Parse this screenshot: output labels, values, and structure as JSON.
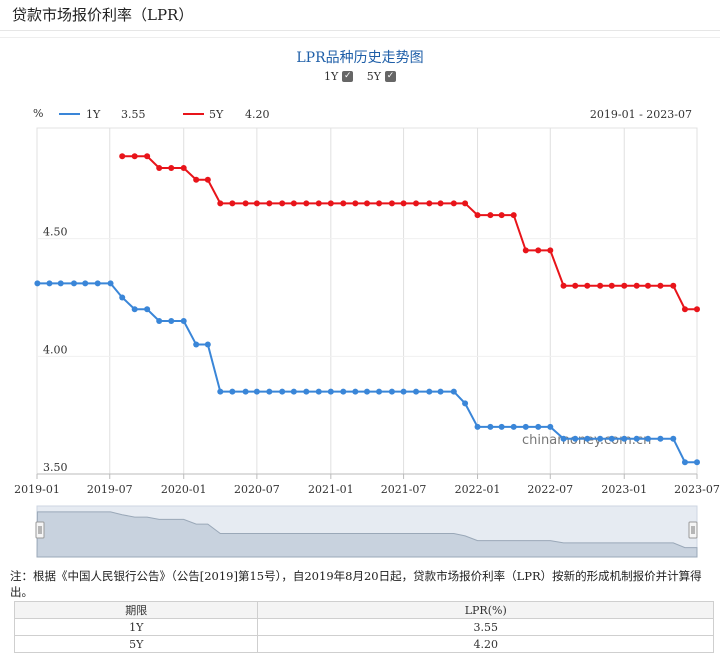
{
  "page": {
    "title": "贷款市场报价利率（LPR）"
  },
  "chart_data": {
    "type": "line",
    "title": "LPR品种历史走势图",
    "toggles": [
      {
        "label": "1Y",
        "checked": true
      },
      {
        "label": "5Y",
        "checked": true
      }
    ],
    "y_unit": "%",
    "date_range_label": "2019-01 - 2023-07",
    "xlim": [
      "2019-01-20",
      "2023-07-20"
    ],
    "ylim": [
      3.5,
      4.97
    ],
    "y_ticks": [
      3.5,
      4.0,
      4.5
    ],
    "y_tick_labels": [
      "3.50",
      "4.00",
      "4.50"
    ],
    "x_ticks": [
      "2019-01",
      "2019-07",
      "2020-01",
      "2020-07",
      "2021-01",
      "2021-07",
      "2022-01",
      "2022-07",
      "2023-01",
      "2023-07"
    ],
    "watermark": "chinamoney.com.cn",
    "grid": "vertical",
    "legend_position": "top-left",
    "series": [
      {
        "name": "1Y",
        "color": "#3a86d8",
        "latest": "3.55",
        "points": [
          [
            "2019-01-21",
            4.31
          ],
          [
            "2019-02-20",
            4.31
          ],
          [
            "2019-03-20",
            4.31
          ],
          [
            "2019-04-22",
            4.31
          ],
          [
            "2019-05-20",
            4.31
          ],
          [
            "2019-06-20",
            4.31
          ],
          [
            "2019-07-22",
            4.31
          ],
          [
            "2019-08-20",
            4.25
          ],
          [
            "2019-09-20",
            4.2
          ],
          [
            "2019-10-21",
            4.2
          ],
          [
            "2019-11-20",
            4.15
          ],
          [
            "2019-12-20",
            4.15
          ],
          [
            "2020-01-20",
            4.15
          ],
          [
            "2020-02-20",
            4.05
          ],
          [
            "2020-03-20",
            4.05
          ],
          [
            "2020-04-20",
            3.85
          ],
          [
            "2020-05-20",
            3.85
          ],
          [
            "2020-06-22",
            3.85
          ],
          [
            "2020-07-20",
            3.85
          ],
          [
            "2020-08-20",
            3.85
          ],
          [
            "2020-09-21",
            3.85
          ],
          [
            "2020-10-20",
            3.85
          ],
          [
            "2020-11-20",
            3.85
          ],
          [
            "2020-12-21",
            3.85
          ],
          [
            "2021-01-20",
            3.85
          ],
          [
            "2021-02-20",
            3.85
          ],
          [
            "2021-03-22",
            3.85
          ],
          [
            "2021-04-20",
            3.85
          ],
          [
            "2021-05-20",
            3.85
          ],
          [
            "2021-06-21",
            3.85
          ],
          [
            "2021-07-20",
            3.85
          ],
          [
            "2021-08-20",
            3.85
          ],
          [
            "2021-09-22",
            3.85
          ],
          [
            "2021-10-20",
            3.85
          ],
          [
            "2021-11-22",
            3.85
          ],
          [
            "2021-12-20",
            3.8
          ],
          [
            "2022-01-20",
            3.7
          ],
          [
            "2022-02-21",
            3.7
          ],
          [
            "2022-03-21",
            3.7
          ],
          [
            "2022-04-20",
            3.7
          ],
          [
            "2022-05-20",
            3.7
          ],
          [
            "2022-06-20",
            3.7
          ],
          [
            "2022-07-20",
            3.7
          ],
          [
            "2022-08-22",
            3.65
          ],
          [
            "2022-09-20",
            3.65
          ],
          [
            "2022-10-20",
            3.65
          ],
          [
            "2022-11-21",
            3.65
          ],
          [
            "2022-12-20",
            3.65
          ],
          [
            "2023-01-20",
            3.65
          ],
          [
            "2023-02-20",
            3.65
          ],
          [
            "2023-03-20",
            3.65
          ],
          [
            "2023-04-20",
            3.65
          ],
          [
            "2023-05-22",
            3.65
          ],
          [
            "2023-06-20",
            3.55
          ],
          [
            "2023-07-20",
            3.55
          ]
        ]
      },
      {
        "name": "5Y",
        "color": "#e8141a",
        "latest": "4.20",
        "points": [
          [
            "2019-08-20",
            4.85
          ],
          [
            "2019-09-20",
            4.85
          ],
          [
            "2019-10-21",
            4.85
          ],
          [
            "2019-11-20",
            4.8
          ],
          [
            "2019-12-20",
            4.8
          ],
          [
            "2020-01-20",
            4.8
          ],
          [
            "2020-02-20",
            4.75
          ],
          [
            "2020-03-20",
            4.75
          ],
          [
            "2020-04-20",
            4.65
          ],
          [
            "2020-05-20",
            4.65
          ],
          [
            "2020-06-22",
            4.65
          ],
          [
            "2020-07-20",
            4.65
          ],
          [
            "2020-08-20",
            4.65
          ],
          [
            "2020-09-21",
            4.65
          ],
          [
            "2020-10-20",
            4.65
          ],
          [
            "2020-11-20",
            4.65
          ],
          [
            "2020-12-21",
            4.65
          ],
          [
            "2021-01-20",
            4.65
          ],
          [
            "2021-02-20",
            4.65
          ],
          [
            "2021-03-22",
            4.65
          ],
          [
            "2021-04-20",
            4.65
          ],
          [
            "2021-05-20",
            4.65
          ],
          [
            "2021-06-21",
            4.65
          ],
          [
            "2021-07-20",
            4.65
          ],
          [
            "2021-08-20",
            4.65
          ],
          [
            "2021-09-22",
            4.65
          ],
          [
            "2021-10-20",
            4.65
          ],
          [
            "2021-11-22",
            4.65
          ],
          [
            "2021-12-20",
            4.65
          ],
          [
            "2022-01-20",
            4.6
          ],
          [
            "2022-02-21",
            4.6
          ],
          [
            "2022-03-21",
            4.6
          ],
          [
            "2022-04-20",
            4.6
          ],
          [
            "2022-05-20",
            4.45
          ],
          [
            "2022-06-20",
            4.45
          ],
          [
            "2022-07-20",
            4.45
          ],
          [
            "2022-08-22",
            4.3
          ],
          [
            "2022-09-20",
            4.3
          ],
          [
            "2022-10-20",
            4.3
          ],
          [
            "2022-11-21",
            4.3
          ],
          [
            "2022-12-20",
            4.3
          ],
          [
            "2023-01-20",
            4.3
          ],
          [
            "2023-02-20",
            4.3
          ],
          [
            "2023-03-20",
            4.3
          ],
          [
            "2023-04-20",
            4.3
          ],
          [
            "2023-05-22",
            4.3
          ],
          [
            "2023-06-20",
            4.2
          ],
          [
            "2023-07-20",
            4.2
          ]
        ]
      }
    ]
  },
  "note": "注：根据《中国人民银行公告》（公告[2019]第15号），自2019年8月20日起，贷款市场报价利率（LPR）按新的形成机制报价并计算得出。",
  "table": {
    "headers": [
      "期限",
      "LPR(%)"
    ],
    "rows": [
      [
        "1Y",
        "3.55"
      ],
      [
        "5Y",
        "4.20"
      ]
    ]
  }
}
